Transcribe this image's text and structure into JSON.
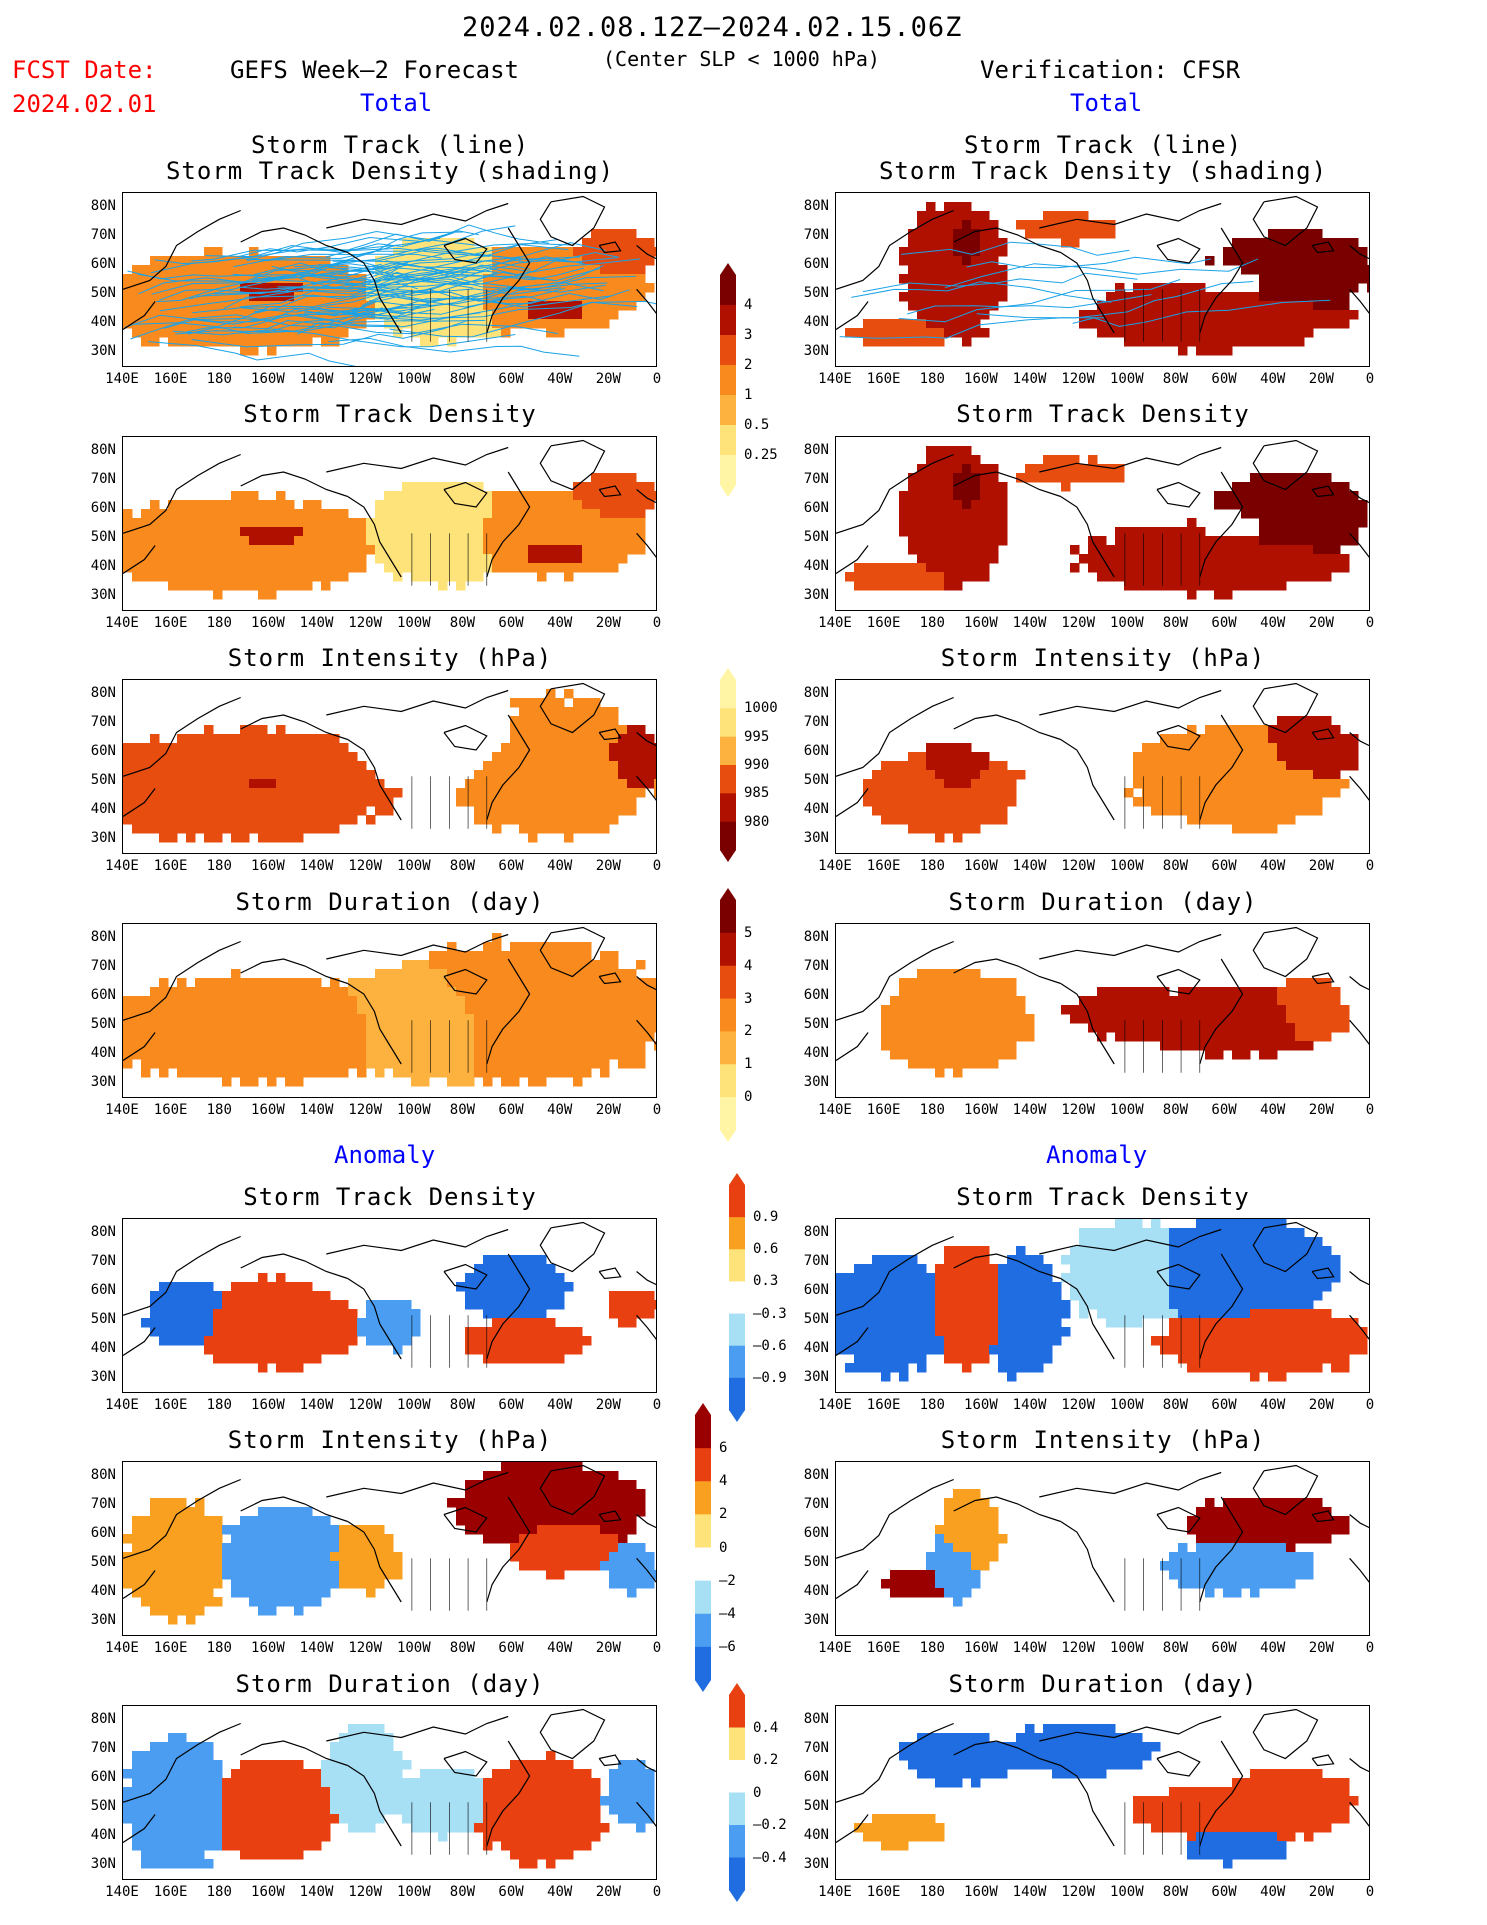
{
  "header": {
    "period": "2024.02.08.12Z–2024.02.15.06Z",
    "criterion": "(Center SLP < 1000 hPa)",
    "fcst_label": "FCST Date:",
    "fcst_date": "2024.02.01",
    "left_model": "GEFS Week–2 Forecast",
    "right_model": "Verification: CFSR",
    "total_label": "Total",
    "anomaly_label": "Anomaly"
  },
  "panel_titles": {
    "track_line": "Storm Track (line)",
    "track_shading": "Storm Track Density (shading)",
    "density": "Storm Track Density",
    "intensity": "Storm Intensity (hPa)",
    "duration": "Storm Duration (day)"
  },
  "axes": {
    "lat_labels": [
      "80N",
      "70N",
      "60N",
      "50N",
      "40N",
      "30N"
    ],
    "lon_labels": [
      "140E",
      "160E",
      "180",
      "160W",
      "140W",
      "120W",
      "100W",
      "80W",
      "60W",
      "40W",
      "20W",
      "0"
    ]
  },
  "colorbars": {
    "density_total": [
      "4",
      "3",
      "2",
      "1",
      "0.5",
      "0.25"
    ],
    "intensity_total": [
      "1000",
      "995",
      "990",
      "985",
      "980"
    ],
    "duration_total": [
      "5",
      "4",
      "3",
      "2",
      "1",
      "0"
    ],
    "density_anom": [
      "0.9",
      "0.6",
      "0.3",
      "–0.3",
      "–0.6",
      "–0.9"
    ],
    "intensity_anom": [
      "6",
      "4",
      "2",
      "0",
      "–2",
      "–4",
      "–6"
    ],
    "duration_anom": [
      "0.4",
      "0.2",
      "0",
      "–0.2",
      "–0.4"
    ]
  },
  "colors": {
    "header_red": "#ff0000",
    "label_blue": "#0000ff",
    "track_line": "#1aa3e8",
    "total_scale": [
      "#fff5a5",
      "#fde37a",
      "#fdb23f",
      "#f98a1e",
      "#e84d10",
      "#b01000",
      "#7a0000"
    ],
    "anom_scale": [
      "#1f6de0",
      "#4a9df0",
      "#a7dff5",
      "#ffffff",
      "#fde37a",
      "#f9a020",
      "#e84010",
      "#9a0000"
    ]
  }
}
